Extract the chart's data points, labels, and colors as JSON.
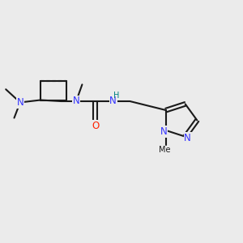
{
  "bg_color": "#ebebeb",
  "bond_color": "#1a1a1a",
  "N_color": "#3333ff",
  "O_color": "#ff2200",
  "H_color": "#008080",
  "line_width": 1.5,
  "figsize": [
    3.0,
    3.0
  ],
  "dpi": 100,
  "xlim": [
    0.0,
    1.0
  ],
  "ylim": [
    0.1,
    0.9
  ]
}
